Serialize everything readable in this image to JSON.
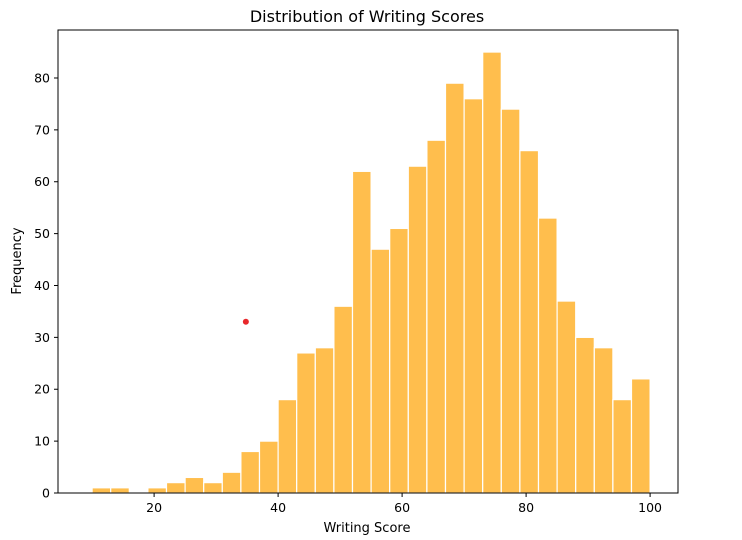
{
  "chart_data": {
    "type": "bar",
    "title": "Distribution of Writing Scores",
    "xlabel": "Writing Score",
    "ylabel": "Frequency",
    "xlim": [
      4.5,
      104.5
    ],
    "ylim": [
      0,
      89.25
    ],
    "xticks": [
      20,
      40,
      60,
      80,
      100
    ],
    "yticks": [
      0,
      10,
      20,
      30,
      40,
      50,
      60,
      70,
      80
    ],
    "bin_edges": [
      10,
      13,
      16,
      19,
      22,
      25,
      28,
      31,
      34,
      37,
      40,
      43,
      46,
      49,
      52,
      55,
      58,
      61,
      64,
      67,
      70,
      73,
      76,
      79,
      82,
      85,
      88,
      91,
      94,
      97,
      100
    ],
    "values": [
      1,
      1,
      0,
      1,
      2,
      3,
      2,
      4,
      8,
      10,
      18,
      27,
      28,
      36,
      62,
      47,
      51,
      63,
      68,
      79,
      76,
      85,
      74,
      66,
      53,
      37,
      30,
      28,
      18,
      22
    ],
    "bar_color": "#FFBE4D",
    "bar_edge_color": "#ffffff",
    "marker": {
      "x": 34.8,
      "y": 33,
      "color": "#e8272b"
    },
    "grid": false,
    "legend": "none"
  }
}
